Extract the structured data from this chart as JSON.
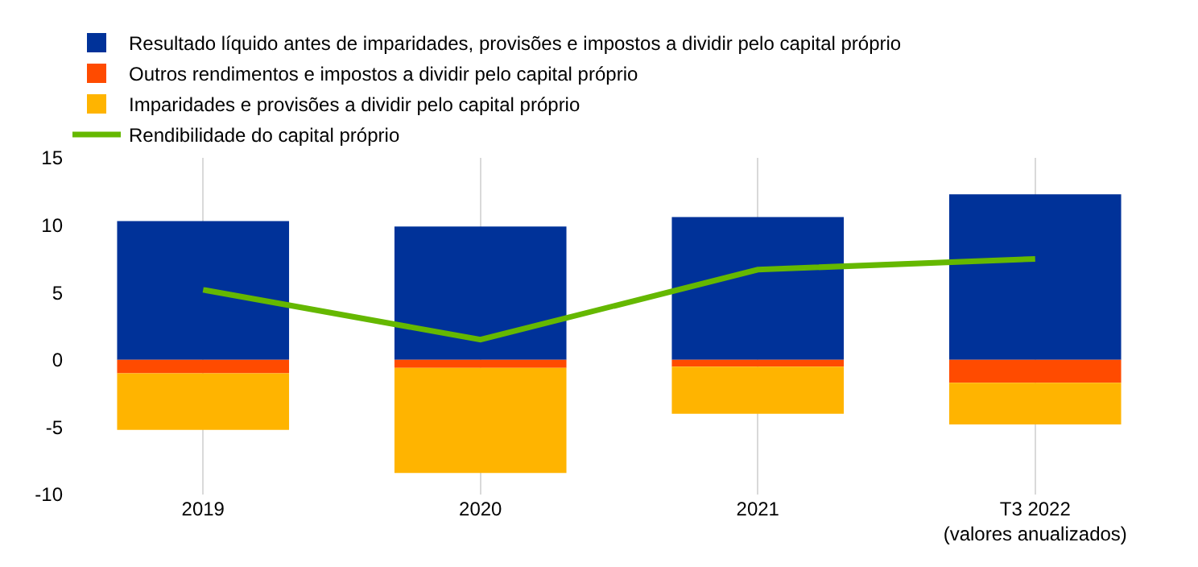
{
  "chart_data": {
    "type": "bar",
    "stacked": true,
    "categories": [
      "2019",
      "2020",
      "2021",
      "T3 2022\n(valores anualizados)"
    ],
    "series": [
      {
        "name": "Resultado líquido antes de imparidades, provisões e impostos a dividir pelo capital próprio",
        "color": "#003299",
        "values": [
          10.3,
          9.9,
          10.6,
          12.3
        ]
      },
      {
        "name": "Outros rendimentos e impostos a dividir pelo capital próprio",
        "color": "#ff4b00",
        "values": [
          -1.0,
          -0.6,
          -0.5,
          -1.7
        ]
      },
      {
        "name": "Imparidades e provisões a dividir pelo capital próprio",
        "color": "#ffb400",
        "values": [
          -4.2,
          -7.8,
          -3.5,
          -3.1
        ]
      },
      {
        "name": "Rendibilidade do capital próprio",
        "type": "line",
        "color": "#65b800",
        "marker": "none",
        "values": [
          5.2,
          1.5,
          6.7,
          7.5
        ]
      }
    ],
    "ylim": [
      -10,
      15
    ],
    "yticks": [
      -10,
      -5,
      0,
      5,
      10,
      15
    ],
    "grid": "x",
    "legend": "top left"
  }
}
